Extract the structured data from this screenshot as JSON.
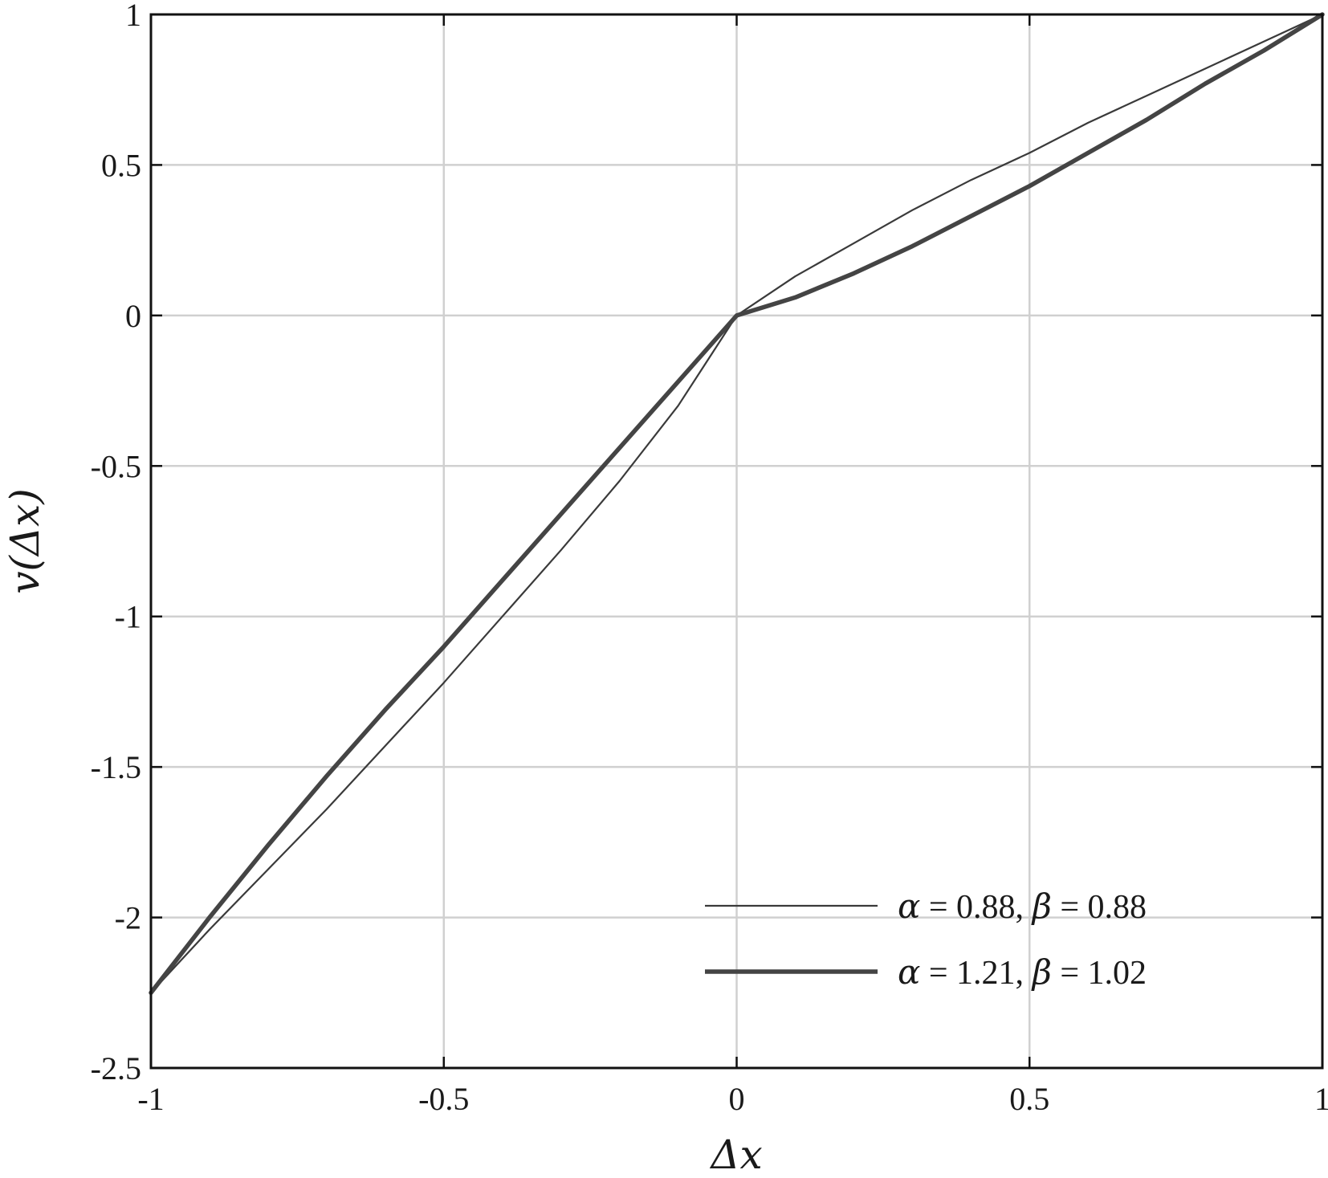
{
  "chart_data": {
    "type": "line",
    "xlabel": "Δx",
    "ylabel": "v(Δx)",
    "xlim": [
      -1,
      1
    ],
    "ylim": [
      -2.5,
      1
    ],
    "grid": true,
    "legend_position": "bottom-right",
    "x_ticks": [
      -1,
      -0.5,
      0,
      0.5,
      1
    ],
    "x_tick_labels": [
      "-1",
      "-0.5",
      "0",
      "0.5",
      "1"
    ],
    "y_ticks": [
      -2.5,
      -2,
      -1.5,
      -1,
      -0.5,
      0,
      0.5,
      1
    ],
    "y_tick_labels": [
      "-2.5",
      "-2",
      "-1.5",
      "-1",
      "-0.5",
      "0",
      "0.5",
      "1"
    ],
    "x": [
      -1,
      -0.9,
      -0.8,
      -0.7,
      -0.6,
      -0.5,
      -0.4,
      -0.3,
      -0.2,
      -0.1,
      0,
      0.1,
      0.2,
      0.3,
      0.4,
      0.5,
      0.6,
      0.7,
      0.8,
      0.9,
      1
    ],
    "series": [
      {
        "name_parts": {
          "a_sym": "α",
          "a_val": " = 0.88, ",
          "b_sym": "β",
          "b_val": " = 0.88"
        },
        "values": [
          -2.25,
          -2.04,
          -1.84,
          -1.64,
          -1.43,
          -1.22,
          -1.0,
          -0.78,
          -0.55,
          -0.3,
          0,
          0.13,
          0.24,
          0.35,
          0.45,
          0.54,
          0.64,
          0.73,
          0.82,
          0.91,
          1.0
        ],
        "stroke": "#3a3a3a",
        "weight": "thin"
      },
      {
        "name_parts": {
          "a_sym": "α",
          "a_val": " = 1.21, ",
          "b_sym": "β",
          "b_val": " = 1.02"
        },
        "values": [
          -2.25,
          -2.0,
          -1.76,
          -1.53,
          -1.31,
          -1.1,
          -0.88,
          -0.66,
          -0.44,
          -0.22,
          0,
          0.06,
          0.14,
          0.23,
          0.33,
          0.43,
          0.54,
          0.65,
          0.77,
          0.88,
          1.0
        ],
        "stroke": "#444444",
        "weight": "thick"
      }
    ]
  }
}
